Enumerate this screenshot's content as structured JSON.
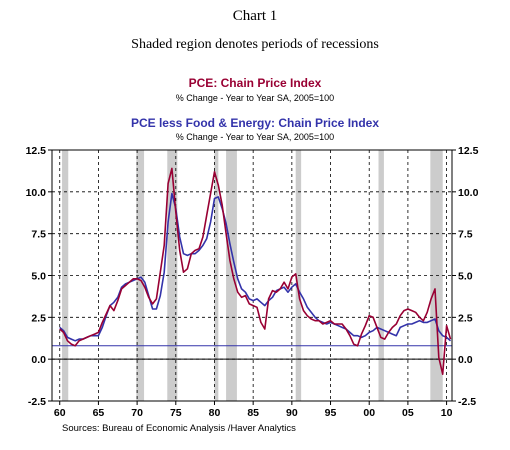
{
  "chart_data": {
    "type": "line",
    "title": "Chart 1",
    "subtitle": "Shaded region denotes periods of recessions",
    "source": "Sources:  Bureau of Economic Analysis /Haver Analytics",
    "ylim": [
      -2.5,
      12.5
    ],
    "yticks": [
      "12.5",
      "10.0",
      "7.5",
      "5.0",
      "2.5",
      "0.0",
      "-2.5"
    ],
    "ytick_values": [
      12.5,
      10.0,
      7.5,
      5.0,
      2.5,
      0.0,
      -2.5
    ],
    "xlim": [
      1959.0,
      2010.7
    ],
    "xticks": [
      "60",
      "65",
      "70",
      "75",
      "80",
      "85",
      "90",
      "95",
      "00",
      "05",
      "10"
    ],
    "xtick_values": [
      1960,
      1965,
      1970,
      1975,
      1980,
      1985,
      1990,
      1995,
      2000,
      2005,
      2010
    ],
    "grid": true,
    "recessions": [
      [
        1960.3,
        1961.1
      ],
      [
        1969.9,
        1970.9
      ],
      [
        1973.9,
        1975.2
      ],
      [
        1980.0,
        1980.5
      ],
      [
        1981.5,
        1982.9
      ],
      [
        1990.5,
        1991.2
      ],
      [
        2001.2,
        2001.9
      ],
      [
        2007.9,
        2009.5
      ]
    ],
    "reference_line": 0.8,
    "series": [
      {
        "name": "PCE: Chain Price Index",
        "subtitle": "% Change - Year to Year    SA, 2005=100",
        "color": "#990033",
        "x": [
          1960.0,
          1960.5,
          1961.0,
          1961.5,
          1962.0,
          1962.5,
          1963.0,
          1963.5,
          1964.0,
          1964.5,
          1965.0,
          1965.5,
          1966.0,
          1966.5,
          1967.0,
          1967.5,
          1968.0,
          1968.5,
          1969.0,
          1969.5,
          1970.0,
          1970.5,
          1971.0,
          1971.5,
          1972.0,
          1972.5,
          1973.0,
          1973.5,
          1974.0,
          1974.5,
          1975.0,
          1975.5,
          1976.0,
          1976.5,
          1977.0,
          1977.5,
          1978.0,
          1978.5,
          1979.0,
          1979.5,
          1980.0,
          1980.5,
          1981.0,
          1981.5,
          1982.0,
          1982.5,
          1983.0,
          1983.5,
          1984.0,
          1984.5,
          1985.0,
          1985.5,
          1986.0,
          1986.5,
          1987.0,
          1987.5,
          1988.0,
          1988.5,
          1989.0,
          1989.5,
          1990.0,
          1990.5,
          1991.0,
          1991.5,
          1992.0,
          1992.5,
          1993.0,
          1993.5,
          1994.0,
          1994.5,
          1995.0,
          1995.5,
          1996.0,
          1996.5,
          1997.0,
          1997.5,
          1998.0,
          1998.5,
          1999.0,
          1999.5,
          2000.0,
          2000.5,
          2001.0,
          2001.5,
          2002.0,
          2002.5,
          2003.0,
          2003.5,
          2004.0,
          2004.5,
          2005.0,
          2005.5,
          2006.0,
          2006.5,
          2007.0,
          2007.5,
          2008.0,
          2008.5,
          2009.0,
          2009.5,
          2010.0,
          2010.5
        ],
        "values": [
          1.8,
          1.6,
          1.1,
          0.9,
          0.8,
          1.1,
          1.2,
          1.3,
          1.4,
          1.5,
          1.6,
          2.2,
          2.7,
          3.2,
          2.9,
          3.5,
          4.2,
          4.4,
          4.6,
          4.8,
          4.8,
          4.7,
          4.3,
          3.7,
          3.3,
          3.6,
          5.2,
          6.8,
          10.5,
          11.4,
          8.8,
          6.5,
          5.2,
          5.4,
          6.3,
          6.5,
          6.6,
          7.3,
          8.6,
          9.9,
          11.2,
          10.4,
          9.2,
          7.5,
          5.9,
          4.8,
          4.0,
          3.7,
          3.8,
          3.3,
          3.2,
          3.1,
          2.2,
          1.8,
          3.6,
          4.1,
          4.0,
          4.2,
          4.6,
          4.2,
          4.9,
          5.1,
          3.6,
          2.9,
          2.6,
          2.4,
          2.3,
          2.3,
          2.1,
          2.2,
          2.3,
          2.1,
          2.1,
          2.1,
          1.8,
          1.4,
          0.9,
          0.8,
          1.5,
          2.0,
          2.6,
          2.5,
          1.9,
          1.3,
          1.2,
          1.6,
          1.9,
          2.1,
          2.6,
          2.9,
          3.0,
          2.9,
          2.8,
          2.5,
          2.3,
          2.8,
          3.6,
          4.2,
          0.1,
          -0.9,
          2.0,
          1.2
        ]
      },
      {
        "name": "PCE less Food & Energy: Chain Price Index",
        "subtitle": "% Change - Year to Year    SA, 2005=100",
        "color": "#3333aa",
        "x": [
          1960.0,
          1960.5,
          1961.0,
          1961.5,
          1962.0,
          1962.5,
          1963.0,
          1963.5,
          1964.0,
          1964.5,
          1965.0,
          1965.5,
          1966.0,
          1966.5,
          1967.0,
          1967.5,
          1968.0,
          1968.5,
          1969.0,
          1969.5,
          1970.0,
          1970.5,
          1971.0,
          1971.5,
          1972.0,
          1972.5,
          1973.0,
          1973.5,
          1974.0,
          1974.5,
          1975.0,
          1975.5,
          1976.0,
          1976.5,
          1977.0,
          1977.5,
          1978.0,
          1978.5,
          1979.0,
          1979.5,
          1980.0,
          1980.5,
          1981.0,
          1981.5,
          1982.0,
          1982.5,
          1983.0,
          1983.5,
          1984.0,
          1984.5,
          1985.0,
          1985.5,
          1986.0,
          1986.5,
          1987.0,
          1987.5,
          1988.0,
          1988.5,
          1989.0,
          1989.5,
          1990.0,
          1990.5,
          1991.0,
          1991.5,
          1992.0,
          1992.5,
          1993.0,
          1993.5,
          1994.0,
          1994.5,
          1995.0,
          1995.5,
          1996.0,
          1996.5,
          1997.0,
          1997.5,
          1998.0,
          1998.5,
          1999.0,
          1999.5,
          2000.0,
          2000.5,
          2001.0,
          2001.5,
          2002.0,
          2002.5,
          2003.0,
          2003.5,
          2004.0,
          2004.5,
          2005.0,
          2005.5,
          2006.0,
          2006.5,
          2007.0,
          2007.5,
          2008.0,
          2008.5,
          2009.0,
          2009.5,
          2010.0,
          2010.5
        ],
        "values": [
          1.9,
          1.7,
          1.3,
          1.2,
          1.1,
          1.2,
          1.2,
          1.3,
          1.4,
          1.4,
          1.4,
          1.9,
          2.6,
          3.2,
          3.4,
          3.7,
          4.3,
          4.5,
          4.6,
          4.7,
          4.8,
          4.9,
          4.6,
          3.8,
          3.0,
          3.0,
          3.8,
          5.2,
          8.2,
          9.9,
          9.0,
          7.3,
          6.3,
          6.2,
          6.3,
          6.3,
          6.5,
          6.8,
          7.2,
          8.2,
          9.6,
          9.7,
          9.0,
          8.1,
          6.9,
          5.8,
          4.8,
          4.2,
          4.0,
          3.6,
          3.5,
          3.6,
          3.4,
          3.2,
          3.5,
          3.7,
          4.1,
          4.2,
          4.3,
          4.0,
          4.3,
          4.5,
          4.0,
          3.6,
          3.1,
          2.8,
          2.5,
          2.3,
          2.2,
          2.1,
          2.2,
          2.1,
          2.0,
          1.9,
          1.8,
          1.6,
          1.4,
          1.4,
          1.3,
          1.4,
          1.6,
          1.7,
          1.9,
          1.8,
          1.7,
          1.6,
          1.5,
          1.4,
          1.9,
          2.0,
          2.1,
          2.1,
          2.2,
          2.3,
          2.2,
          2.2,
          2.3,
          2.4,
          1.7,
          1.4,
          1.3,
          1.1
        ]
      }
    ]
  }
}
